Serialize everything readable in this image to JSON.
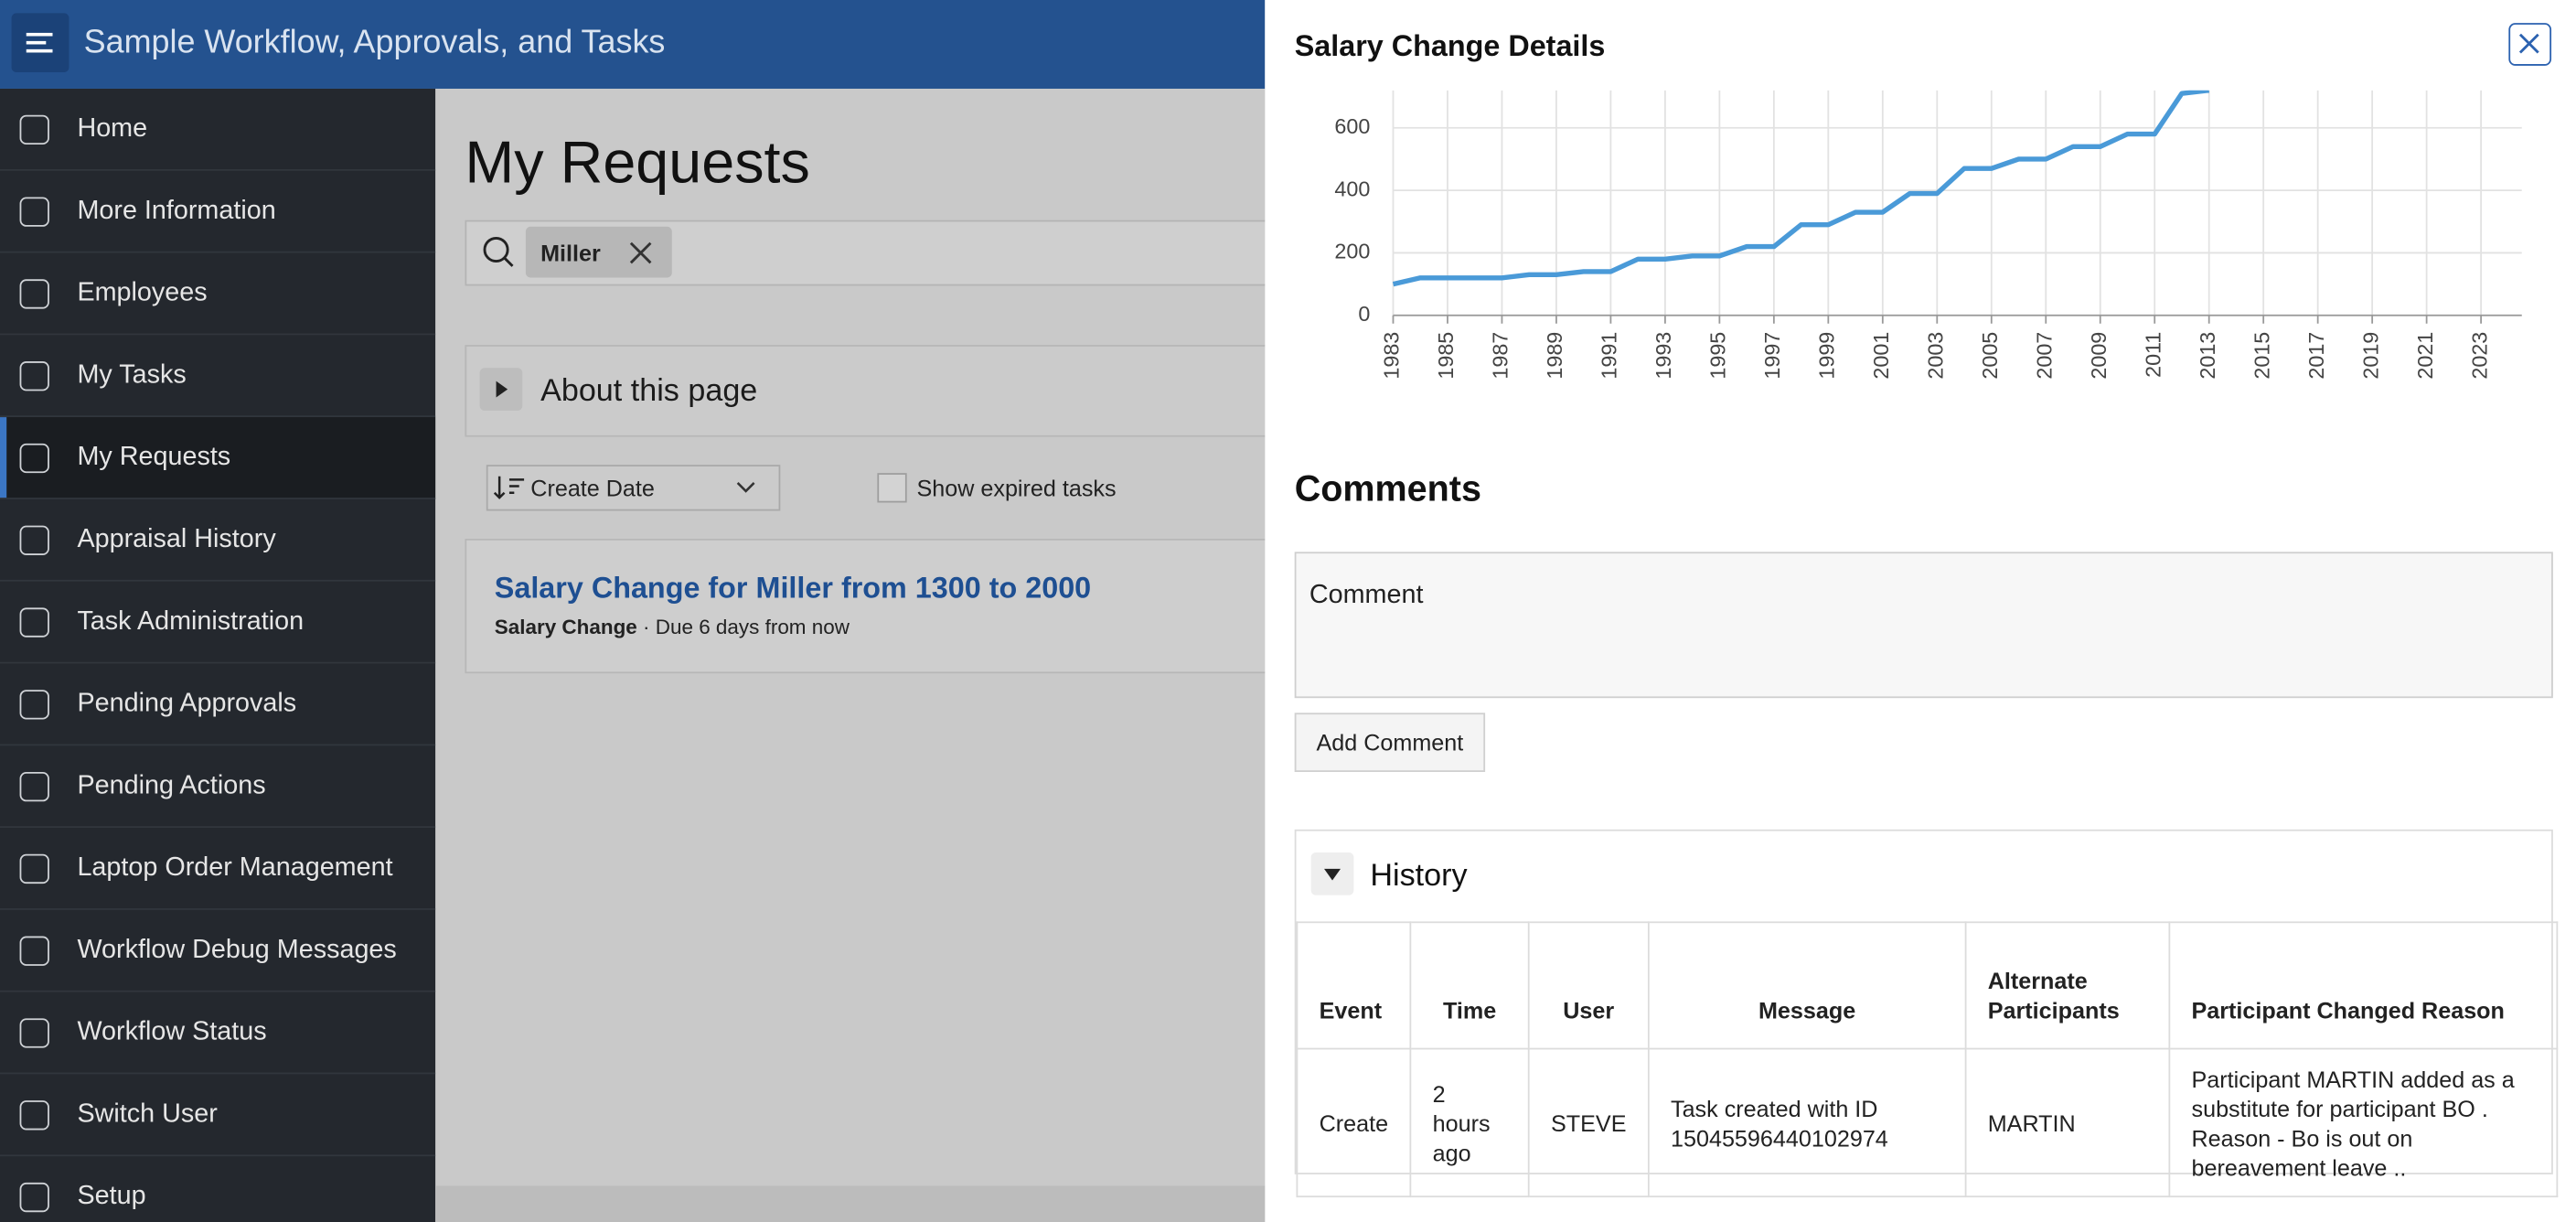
{
  "header": {
    "app_title": "Sample Workflow, Approvals, and Tasks"
  },
  "sidebar": {
    "items": [
      "Home",
      "More Information",
      "Employees",
      "My Tasks",
      "My Requests",
      "Appraisal History",
      "Task Administration",
      "Pending Approvals",
      "Pending Actions",
      "Laptop Order Management",
      "Workflow Debug Messages",
      "Workflow Status",
      "Switch User",
      "Setup"
    ]
  },
  "main": {
    "title": "My Requests",
    "search_chip": "Miller",
    "about": "About this page",
    "sort": "Create Date",
    "show_expired": "Show expired tasks",
    "card": {
      "title": "Salary Change for Miller from 1300 to 2000",
      "type": "Salary Change",
      "due": "· Due 6 days from now"
    }
  },
  "panel": {
    "title": "Salary Change Details"
  },
  "chart_data": {
    "type": "line",
    "color": "#4a9ad8",
    "grid": true,
    "x": [
      1983,
      1984,
      1985,
      1986,
      1987,
      1988,
      1989,
      1990,
      1991,
      1992,
      1993,
      1994,
      1995,
      1996,
      1997,
      1998,
      1999,
      2000,
      2001,
      2002,
      2003,
      2004,
      2005,
      2006,
      2007,
      2008,
      2009,
      2010,
      2011,
      2012,
      2013
    ],
    "values": [
      100,
      120,
      120,
      120,
      120,
      130,
      130,
      140,
      140,
      180,
      180,
      190,
      190,
      220,
      220,
      290,
      290,
      330,
      330,
      390,
      390,
      470,
      470,
      500,
      500,
      540,
      540,
      580,
      580,
      710,
      720
    ],
    "xlim": [
      1983,
      2024.5
    ],
    "xticks": [
      1983,
      1985,
      1987,
      1989,
      1991,
      1993,
      1995,
      1997,
      1999,
      2001,
      2003,
      2005,
      2007,
      2009,
      2011,
      2013,
      2015,
      2017,
      2019,
      2021,
      2023
    ],
    "ylim": [
      0,
      720
    ],
    "yticks": [
      0,
      200,
      400,
      600
    ]
  },
  "comments": {
    "heading": "Comments",
    "placeholder": "Comment",
    "button": "Add Comment"
  },
  "history": {
    "title": "History",
    "columns": [
      "Event",
      "Time",
      "User",
      "Message",
      "Alternate Participants",
      "Participant Changed Reason"
    ],
    "rows": [
      [
        "Create",
        "2 hours ago",
        "STEVE",
        "Task created with ID 15045596440102974",
        "MARTIN",
        "Participant MARTIN added as a substitute for participant BO . Reason - Bo is out on bereavement leave .."
      ]
    ]
  }
}
